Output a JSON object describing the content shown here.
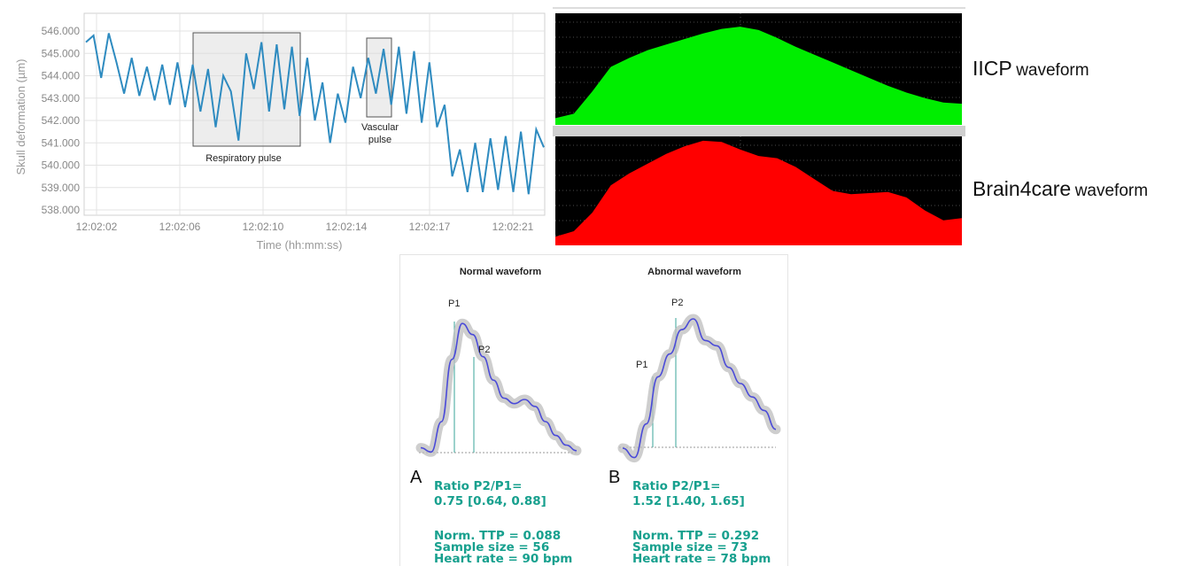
{
  "chart_data": [
    {
      "type": "line",
      "xlabel": "Time (hh:mm:ss)",
      "ylabel": "Skull deformation (µm)",
      "ylim": [
        538000,
        546000
      ],
      "yticks": [
        "538.000",
        "539.000",
        "540.000",
        "541.000",
        "542.000",
        "543.000",
        "544.000",
        "545.000",
        "546.000"
      ],
      "xticks": [
        "12:02:02",
        "12:02:06",
        "12:02:10",
        "12:02:14",
        "12:02:17",
        "12:02:21"
      ],
      "grid": true,
      "annotations": [
        "Respiratory pulse",
        "Vascular",
        "pulse"
      ],
      "line_color": "#2e8bc0",
      "series": [
        {
          "values": [
            545500,
            545800,
            543900,
            545900,
            544600,
            543200,
            544800,
            543100,
            544400,
            542900,
            544500,
            542700,
            544600,
            542600,
            544500,
            542400,
            544300,
            541700,
            544000,
            543300,
            541100,
            545000,
            543400,
            545500,
            542400,
            545400,
            542500,
            545300,
            542200,
            544800,
            542000,
            543700,
            541000,
            543200,
            541900,
            544400,
            543000,
            544800,
            543200,
            545200,
            542700,
            545300,
            542300,
            545100,
            541900,
            544600,
            541700,
            542700,
            539500,
            540700,
            538800,
            541000,
            538800,
            541200,
            538900,
            541300,
            538800,
            541500,
            538700,
            541600,
            540800
          ]
        }
      ]
    },
    {
      "type": "area",
      "label_main": "IICP",
      "label_sub": "waveform",
      "color": "#00ee00",
      "background": "#000000",
      "values": [
        0.06,
        0.1,
        0.3,
        0.52,
        0.6,
        0.67,
        0.72,
        0.77,
        0.82,
        0.86,
        0.88,
        0.85,
        0.78,
        0.7,
        0.63,
        0.56,
        0.49,
        0.42,
        0.35,
        0.29,
        0.24,
        0.2,
        0.19
      ]
    },
    {
      "type": "area",
      "label_main": "Brain4care",
      "label_sub": "waveform",
      "color": "#ff0000",
      "background": "#000000",
      "values": [
        0.08,
        0.13,
        0.3,
        0.55,
        0.66,
        0.75,
        0.84,
        0.91,
        0.96,
        0.95,
        0.88,
        0.82,
        0.8,
        0.72,
        0.61,
        0.5,
        0.47,
        0.48,
        0.49,
        0.44,
        0.32,
        0.23,
        0.25
      ]
    },
    {
      "type": "line",
      "title": "Normal waveform",
      "panel_letter": "A",
      "peaks": [
        "P1",
        "P2"
      ],
      "ratio_label": "Ratio P2/P1=",
      "ratio_value": "0.75 [0.64, 0.88]",
      "ttp": "Norm. TTP = 0.088",
      "sample_size": "Sample size = 56",
      "heart_rate": "Heart rate = 90 bpm",
      "values": [
        0.06,
        0.03,
        0.25,
        0.7,
        0.96,
        0.88,
        0.72,
        0.55,
        0.42,
        0.38,
        0.41,
        0.36,
        0.25,
        0.15,
        0.08,
        0.04
      ]
    },
    {
      "type": "line",
      "title": "Abnormal waveform",
      "panel_letter": "B",
      "peaks": [
        "P1",
        "P2"
      ],
      "ratio_label": "Ratio P2/P1=",
      "ratio_value": "1.52 [1.40, 1.65]",
      "ttp": "Norm. TTP = 0.292",
      "sample_size": "Sample size = 73",
      "heart_rate": "Heart rate = 78 bpm",
      "values": [
        0.02,
        -0.05,
        0.2,
        0.55,
        0.72,
        0.9,
        0.98,
        0.82,
        0.78,
        0.62,
        0.5,
        0.4,
        0.3,
        0.16
      ]
    }
  ]
}
